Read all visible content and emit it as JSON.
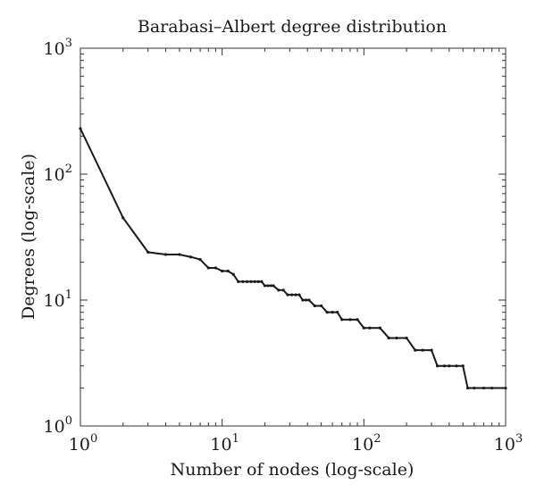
{
  "chart_data": {
    "type": "line",
    "title": "Barabasi–Albert degree distribution",
    "xlabel": "Number of nodes (log-scale)",
    "ylabel": "Degrees (log-scale)",
    "xscale": "log",
    "yscale": "log",
    "xlim": [
      1,
      1000
    ],
    "ylim": [
      1,
      1000
    ],
    "x_ticks": [
      {
        "base": "10",
        "exp": "0",
        "value": 1
      },
      {
        "base": "10",
        "exp": "1",
        "value": 10
      },
      {
        "base": "10",
        "exp": "2",
        "value": 100
      },
      {
        "base": "10",
        "exp": "3",
        "value": 1000
      }
    ],
    "y_ticks": [
      {
        "base": "10",
        "exp": "0",
        "value": 1
      },
      {
        "base": "10",
        "exp": "1",
        "value": 10
      },
      {
        "base": "10",
        "exp": "2",
        "value": 100
      },
      {
        "base": "10",
        "exp": "3",
        "value": 1000
      }
    ],
    "grid": false,
    "line_color": "#1a1a1a",
    "series": [
      {
        "x": [
          1,
          2,
          3,
          4,
          5,
          6,
          7,
          8,
          9,
          10,
          11,
          12,
          13,
          14,
          15,
          16,
          17,
          18,
          19,
          20,
          21,
          22,
          23,
          25,
          27,
          29,
          31,
          33,
          35,
          37,
          39,
          41,
          45,
          50,
          55,
          60,
          65,
          70,
          80,
          90,
          100,
          110,
          130,
          150,
          170,
          200,
          230,
          260,
          300,
          330,
          370,
          400,
          450,
          500,
          540,
          600,
          700,
          800,
          1000
        ],
        "y": [
          230,
          45,
          24,
          23,
          23,
          22,
          21,
          18,
          18,
          17,
          17,
          16,
          14,
          14,
          14,
          14,
          14,
          14,
          14,
          13,
          13,
          13,
          13,
          12,
          12,
          11,
          11,
          11,
          11,
          10,
          10,
          10,
          9,
          9,
          8,
          8,
          8,
          7,
          7,
          7,
          6,
          6,
          6,
          5,
          5,
          5,
          4,
          4,
          4,
          3,
          3,
          3,
          3,
          3,
          2,
          2,
          2,
          2,
          2
        ]
      }
    ]
  }
}
